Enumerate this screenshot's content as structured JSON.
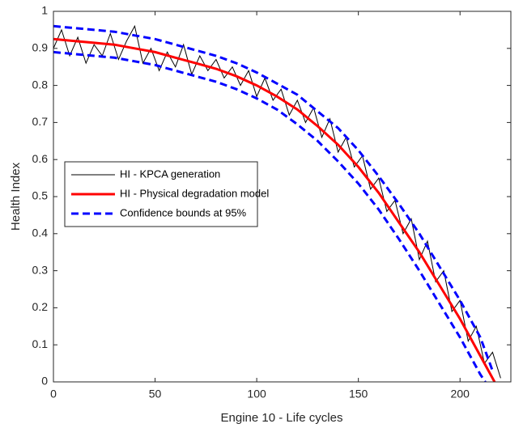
{
  "chart_data": {
    "type": "line",
    "xlabel": "Engine 10 - Life cycles",
    "ylabel": "Health Index",
    "xlim": [
      0,
      225
    ],
    "ylim": [
      0,
      1
    ],
    "xticks": [
      0,
      50,
      100,
      150,
      200
    ],
    "yticks": [
      0,
      0.1,
      0.2,
      0.3,
      0.4,
      0.5,
      0.6,
      0.7,
      0.8,
      0.9,
      1
    ],
    "legend": "left",
    "series": [
      {
        "name": "HI - KPCA generation",
        "color": "#000000",
        "style": "solid",
        "x": [
          0,
          4,
          8,
          12,
          16,
          20,
          24,
          28,
          32,
          36,
          40,
          44,
          48,
          52,
          56,
          60,
          64,
          68,
          72,
          76,
          80,
          84,
          88,
          92,
          96,
          100,
          104,
          108,
          112,
          116,
          120,
          124,
          128,
          132,
          136,
          140,
          144,
          148,
          152,
          156,
          160,
          164,
          168,
          172,
          176,
          180,
          184,
          188,
          192,
          196,
          200,
          204,
          208,
          212,
          216,
          220
        ],
        "values": [
          0.9,
          0.95,
          0.88,
          0.93,
          0.86,
          0.91,
          0.88,
          0.94,
          0.87,
          0.92,
          0.96,
          0.86,
          0.9,
          0.84,
          0.89,
          0.85,
          0.91,
          0.83,
          0.88,
          0.84,
          0.87,
          0.82,
          0.85,
          0.8,
          0.84,
          0.77,
          0.82,
          0.76,
          0.79,
          0.72,
          0.76,
          0.7,
          0.74,
          0.66,
          0.71,
          0.62,
          0.66,
          0.58,
          0.61,
          0.52,
          0.55,
          0.46,
          0.49,
          0.4,
          0.44,
          0.33,
          0.38,
          0.27,
          0.3,
          0.19,
          0.22,
          0.11,
          0.15,
          0.05,
          0.08,
          0.01
        ]
      },
      {
        "name": "HI - Physical degradation model",
        "color": "#ff0000",
        "style": "solid",
        "x": [
          0,
          10,
          20,
          30,
          40,
          50,
          60,
          70,
          80,
          90,
          100,
          110,
          120,
          130,
          140,
          150,
          160,
          170,
          180,
          190,
          200,
          210,
          217
        ],
        "values": [
          0.925,
          0.92,
          0.915,
          0.91,
          0.9,
          0.89,
          0.875,
          0.86,
          0.845,
          0.825,
          0.8,
          0.77,
          0.735,
          0.69,
          0.64,
          0.58,
          0.51,
          0.43,
          0.35,
          0.26,
          0.17,
          0.07,
          0
        ]
      },
      {
        "name": "Confidence bounds at 95%",
        "color": "#0000ff",
        "style": "dashed",
        "x": [
          0,
          10,
          20,
          30,
          40,
          50,
          60,
          70,
          80,
          90,
          100,
          110,
          120,
          130,
          140,
          150,
          160,
          170,
          180,
          190,
          200,
          210,
          216
        ],
        "upper": [
          0.96,
          0.955,
          0.95,
          0.945,
          0.935,
          0.925,
          0.91,
          0.895,
          0.88,
          0.86,
          0.835,
          0.805,
          0.775,
          0.73,
          0.685,
          0.625,
          0.555,
          0.48,
          0.4,
          0.31,
          0.22,
          0.12,
          0.03
        ],
        "lower": [
          0.89,
          0.885,
          0.88,
          0.875,
          0.865,
          0.855,
          0.84,
          0.825,
          0.81,
          0.79,
          0.765,
          0.735,
          0.695,
          0.65,
          0.595,
          0.535,
          0.465,
          0.385,
          0.3,
          0.21,
          0.12,
          0.02,
          -0.03
        ]
      }
    ]
  }
}
